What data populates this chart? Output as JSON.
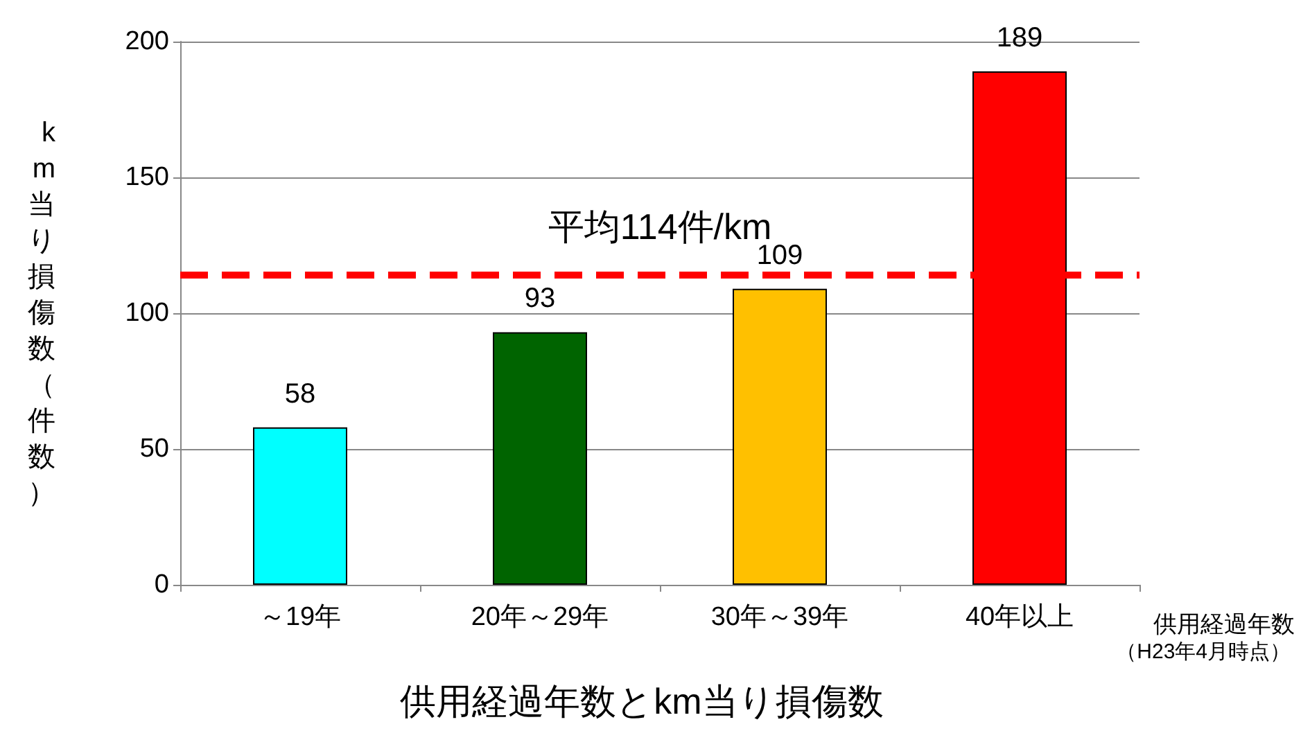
{
  "chart_data": {
    "type": "bar",
    "title": "供用経過年数とkm当り損傷数",
    "xlabel": "供用経過年数",
    "ylabel": "km当り損傷数（件数）",
    "annotations": [
      "（H23年4月時点）"
    ],
    "categories": [
      "～19年",
      "20年～29年",
      "30年～39年",
      "40年以上"
    ],
    "values": [
      58,
      93,
      109,
      189
    ],
    "colors": [
      "#00ffff",
      "#006400",
      "#ffc000",
      "#ff0000"
    ],
    "ylim": [
      0,
      200
    ],
    "yticks": [
      0,
      50,
      100,
      150,
      200
    ],
    "grid": "y",
    "data_labels": true,
    "ref_lines": [
      {
        "axis": "y",
        "value": 114,
        "label": "平均114件/km",
        "color": "#ff0000",
        "line_style": "dashed"
      }
    ]
  }
}
